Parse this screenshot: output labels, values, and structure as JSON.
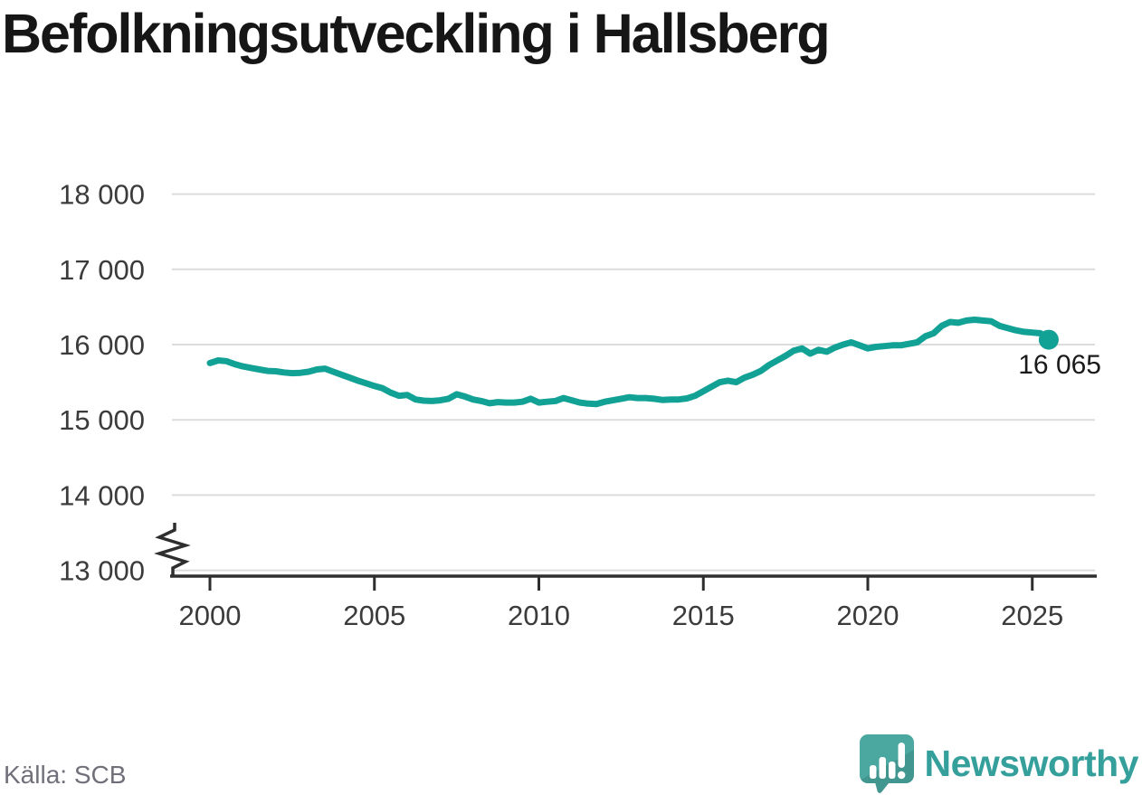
{
  "page": {
    "title": "Befolkningsutveckling i Hallsberg"
  },
  "footer": {
    "source": "Källa: SCB",
    "brand": "Newsworthy"
  },
  "icons": {
    "logo": "newsworthy-speech-bubble-with-bar-chart-and-exclamation"
  },
  "colors": {
    "line": "#12a195",
    "grid": "#dcdcdc",
    "axis": "#2e2e2e",
    "tick_label": "#3b3b3b",
    "end_label": "#1a1a1a",
    "brand_teal": "#35a09b",
    "brand_icon_teal": "#4aa8a1"
  },
  "chart_data": {
    "type": "line",
    "title": "Befolkningsutveckling i Hallsberg",
    "xlabel": "",
    "ylabel": "",
    "grid": "horizontal",
    "legend": "none",
    "y_axis_break": true,
    "xlim": [
      1998.8,
      2026.5
    ],
    "ylim": [
      13000,
      18000
    ],
    "x_ticks": {
      "values": [
        2000,
        2005,
        2010,
        2015,
        2020,
        2025
      ],
      "labels": [
        "2000",
        "2005",
        "2010",
        "2015",
        "2020",
        "2025"
      ]
    },
    "y_ticks": {
      "values": [
        13000,
        14000,
        15000,
        16000,
        17000,
        18000
      ],
      "labels": [
        "13 000",
        "14 000",
        "15 000",
        "16 000",
        "17 000",
        "18 000"
      ]
    },
    "end_point": {
      "x": 2025.5,
      "y": 16065,
      "label": "16 065"
    },
    "series": [
      {
        "name": "Befolkning",
        "points": [
          [
            2000.0,
            15755
          ],
          [
            2000.25,
            15790
          ],
          [
            2000.5,
            15780
          ],
          [
            2000.75,
            15740
          ],
          [
            2001.0,
            15710
          ],
          [
            2001.25,
            15690
          ],
          [
            2001.5,
            15670
          ],
          [
            2001.75,
            15650
          ],
          [
            2002.0,
            15645
          ],
          [
            2002.25,
            15630
          ],
          [
            2002.5,
            15620
          ],
          [
            2002.75,
            15625
          ],
          [
            2003.0,
            15640
          ],
          [
            2003.25,
            15670
          ],
          [
            2003.5,
            15680
          ],
          [
            2003.75,
            15640
          ],
          [
            2004.0,
            15600
          ],
          [
            2004.25,
            15560
          ],
          [
            2004.5,
            15520
          ],
          [
            2004.75,
            15485
          ],
          [
            2005.0,
            15450
          ],
          [
            2005.25,
            15420
          ],
          [
            2005.5,
            15360
          ],
          [
            2005.75,
            15320
          ],
          [
            2006.0,
            15330
          ],
          [
            2006.25,
            15270
          ],
          [
            2006.5,
            15255
          ],
          [
            2006.75,
            15250
          ],
          [
            2007.0,
            15260
          ],
          [
            2007.25,
            15280
          ],
          [
            2007.5,
            15340
          ],
          [
            2007.75,
            15310
          ],
          [
            2008.0,
            15270
          ],
          [
            2008.25,
            15250
          ],
          [
            2008.5,
            15220
          ],
          [
            2008.75,
            15235
          ],
          [
            2009.0,
            15230
          ],
          [
            2009.25,
            15230
          ],
          [
            2009.5,
            15240
          ],
          [
            2009.75,
            15280
          ],
          [
            2010.0,
            15230
          ],
          [
            2010.25,
            15240
          ],
          [
            2010.5,
            15250
          ],
          [
            2010.75,
            15290
          ],
          [
            2011.0,
            15260
          ],
          [
            2011.25,
            15230
          ],
          [
            2011.5,
            15215
          ],
          [
            2011.75,
            15210
          ],
          [
            2012.0,
            15240
          ],
          [
            2012.25,
            15260
          ],
          [
            2012.5,
            15280
          ],
          [
            2012.75,
            15300
          ],
          [
            2013.0,
            15290
          ],
          [
            2013.25,
            15290
          ],
          [
            2013.5,
            15280
          ],
          [
            2013.75,
            15265
          ],
          [
            2014.0,
            15270
          ],
          [
            2014.25,
            15270
          ],
          [
            2014.5,
            15285
          ],
          [
            2014.75,
            15320
          ],
          [
            2015.0,
            15380
          ],
          [
            2015.25,
            15440
          ],
          [
            2015.5,
            15500
          ],
          [
            2015.75,
            15520
          ],
          [
            2016.0,
            15500
          ],
          [
            2016.25,
            15560
          ],
          [
            2016.5,
            15600
          ],
          [
            2016.75,
            15650
          ],
          [
            2017.0,
            15730
          ],
          [
            2017.25,
            15790
          ],
          [
            2017.5,
            15850
          ],
          [
            2017.75,
            15920
          ],
          [
            2018.0,
            15950
          ],
          [
            2018.25,
            15880
          ],
          [
            2018.5,
            15930
          ],
          [
            2018.75,
            15905
          ],
          [
            2019.0,
            15960
          ],
          [
            2019.25,
            16000
          ],
          [
            2019.5,
            16030
          ],
          [
            2019.75,
            15990
          ],
          [
            2020.0,
            15950
          ],
          [
            2020.25,
            15970
          ],
          [
            2020.5,
            15980
          ],
          [
            2020.75,
            15990
          ],
          [
            2021.0,
            15990
          ],
          [
            2021.25,
            16010
          ],
          [
            2021.5,
            16030
          ],
          [
            2021.75,
            16110
          ],
          [
            2022.0,
            16150
          ],
          [
            2022.25,
            16250
          ],
          [
            2022.5,
            16300
          ],
          [
            2022.75,
            16290
          ],
          [
            2023.0,
            16320
          ],
          [
            2023.25,
            16330
          ],
          [
            2023.5,
            16320
          ],
          [
            2023.75,
            16310
          ],
          [
            2024.0,
            16250
          ],
          [
            2024.25,
            16220
          ],
          [
            2024.5,
            16190
          ],
          [
            2024.75,
            16170
          ],
          [
            2025.0,
            16160
          ],
          [
            2025.25,
            16150
          ],
          [
            2025.5,
            16065
          ]
        ]
      }
    ]
  }
}
